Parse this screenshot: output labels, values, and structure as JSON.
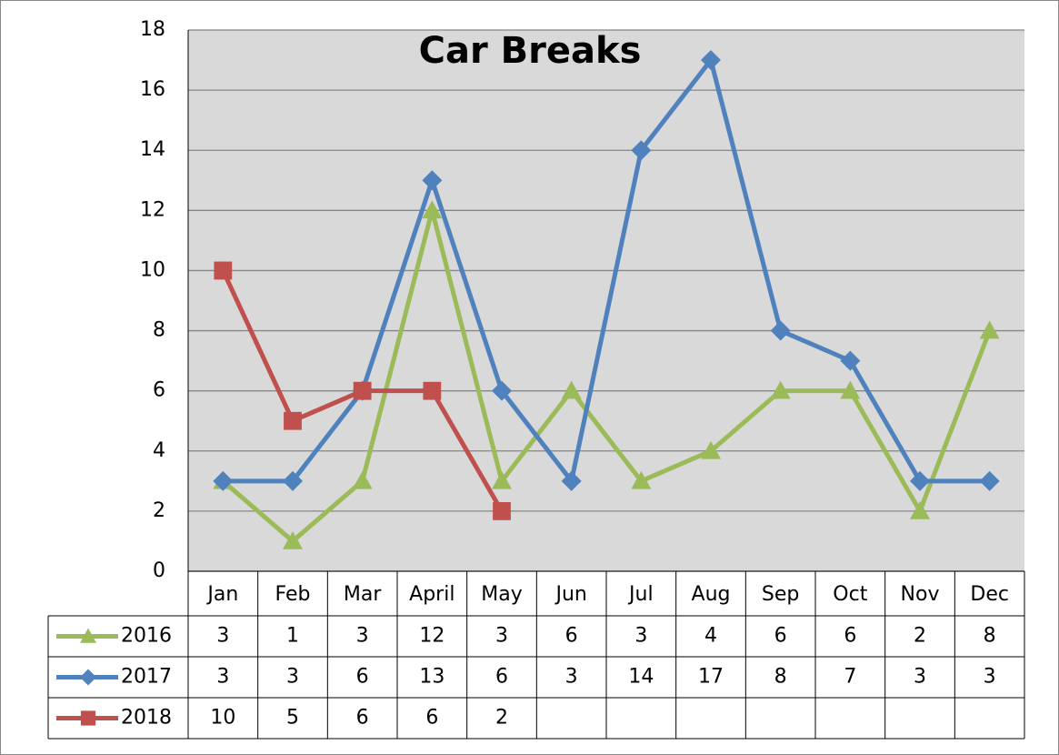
{
  "chart_data": {
    "type": "line",
    "title": "Car Breaks",
    "categories": [
      "Jan",
      "Feb",
      "Mar",
      "April",
      "May",
      "Jun",
      "Jul",
      "Aug",
      "Sep",
      "Oct",
      "Nov",
      "Dec"
    ],
    "series": [
      {
        "name": "2016",
        "color": "#9bbb59",
        "marker": "triangle",
        "values": [
          3,
          1,
          3,
          12,
          3,
          6,
          3,
          4,
          6,
          6,
          2,
          8
        ]
      },
      {
        "name": "2017",
        "color": "#4f81bd",
        "marker": "diamond",
        "values": [
          3,
          3,
          6,
          13,
          6,
          3,
          14,
          17,
          8,
          7,
          3,
          3
        ]
      },
      {
        "name": "2018",
        "color": "#c0504d",
        "marker": "square",
        "values": [
          10,
          5,
          6,
          6,
          2,
          null,
          null,
          null,
          null,
          null,
          null,
          null
        ]
      }
    ],
    "ylim": [
      0,
      18
    ],
    "yticks": [
      0,
      2,
      4,
      6,
      8,
      10,
      12,
      14,
      16,
      18
    ],
    "grid": true,
    "data_table": true
  }
}
